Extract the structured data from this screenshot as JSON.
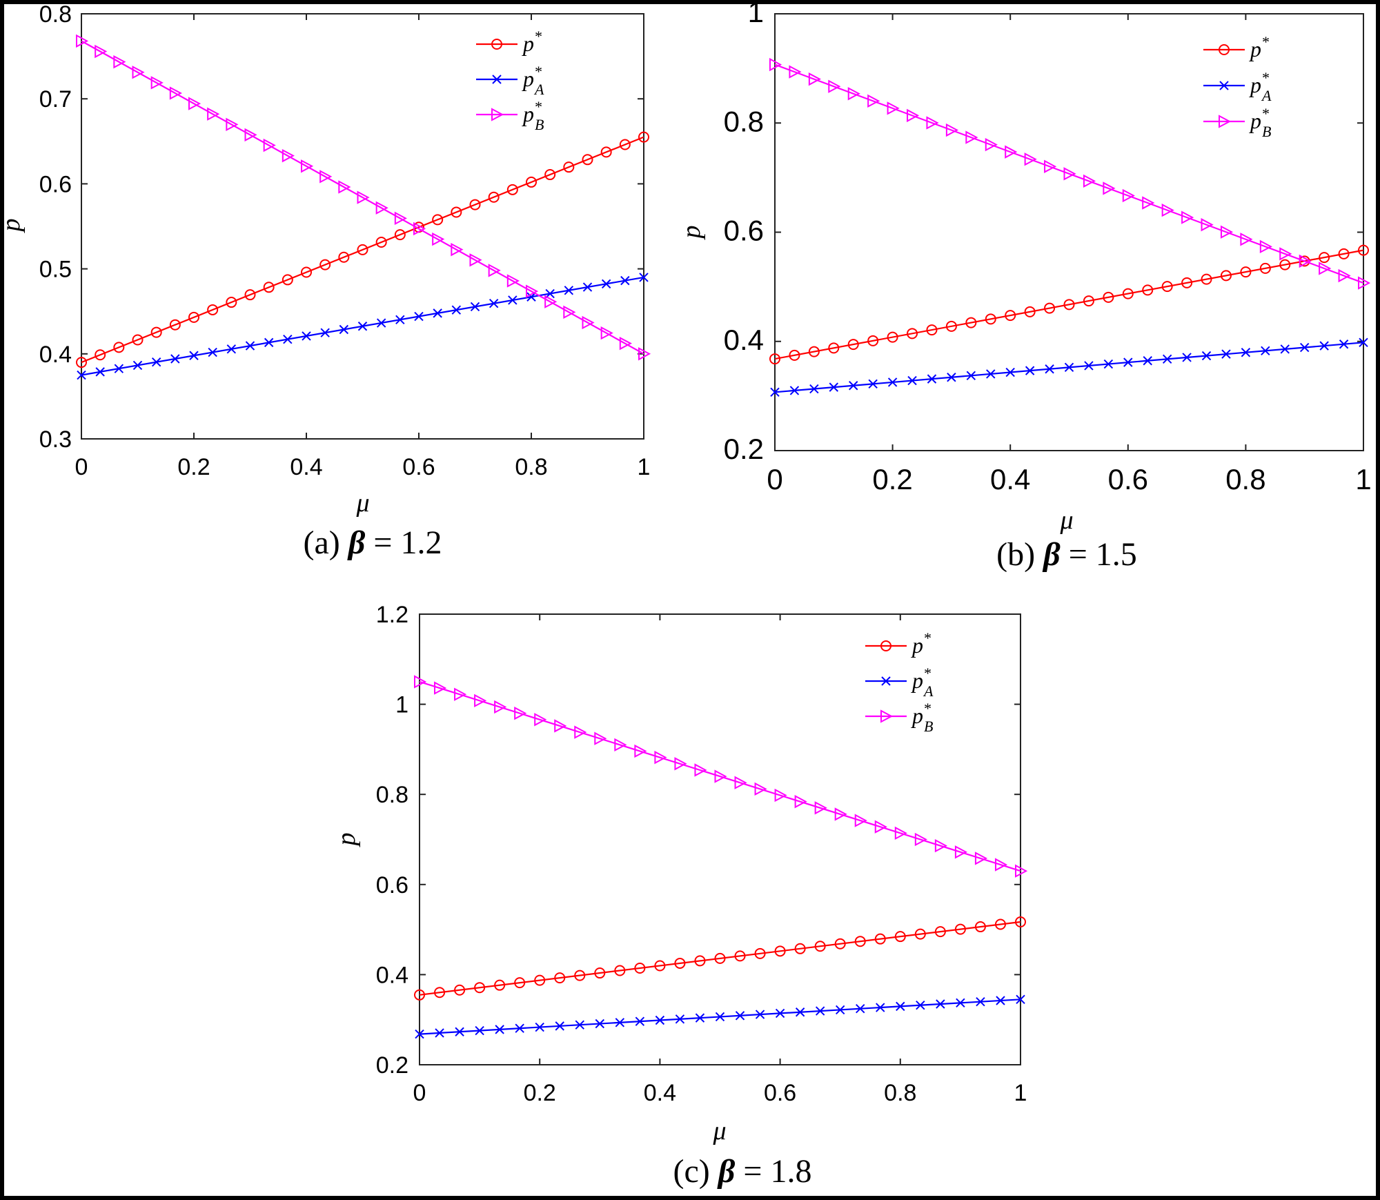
{
  "chart_data": [
    {
      "type": "line",
      "panel": "a",
      "caption": {
        "prefix": "(a) ",
        "symbol": "β",
        "rest": " = 1.2"
      },
      "xlabel": "μ",
      "ylabel": "p",
      "xlim": [
        0,
        1
      ],
      "ylim": [
        0.3,
        0.8
      ],
      "xticks": [
        "0",
        "0.2",
        "0.4",
        "0.6",
        "0.8",
        "1"
      ],
      "yticks": [
        "0.3",
        "0.4",
        "0.5",
        "0.6",
        "0.7",
        "0.8"
      ],
      "legend_position": "top-right",
      "series": [
        {
          "name": "p*",
          "marker": "circle",
          "color": "#ff0000",
          "start": 0.39,
          "end": 0.655
        },
        {
          "name": "p*A",
          "marker": "x",
          "color": "#0000ff",
          "start": 0.375,
          "end": 0.49
        },
        {
          "name": "p*B",
          "marker": "triangle-right",
          "color": "#ff00ff",
          "start": 0.768,
          "end": 0.4
        }
      ]
    },
    {
      "type": "line",
      "panel": "b",
      "caption": {
        "prefix": "(b) ",
        "symbol": "β",
        "rest": " = 1.5"
      },
      "xlabel": "μ",
      "ylabel": "p",
      "xlim": [
        0,
        1
      ],
      "ylim": [
        0.2,
        1
      ],
      "xticks": [
        "0",
        "0.2",
        "0.4",
        "0.6",
        "0.8",
        "1"
      ],
      "yticks": [
        "0.2",
        "0.4",
        "0.6",
        "0.8",
        "1"
      ],
      "legend_position": "top-right",
      "series": [
        {
          "name": "p*",
          "marker": "circle",
          "color": "#ff0000",
          "start": 0.368,
          "end": 0.567
        },
        {
          "name": "p*A",
          "marker": "x",
          "color": "#0000ff",
          "start": 0.307,
          "end": 0.398
        },
        {
          "name": "p*B",
          "marker": "triangle-right",
          "color": "#ff00ff",
          "start": 0.907,
          "end": 0.507
        }
      ]
    },
    {
      "type": "line",
      "panel": "c",
      "caption": {
        "prefix": "(c) ",
        "symbol": "β",
        "rest": " = 1.8"
      },
      "xlabel": "μ",
      "ylabel": "p",
      "xlim": [
        0,
        1
      ],
      "ylim": [
        0.2,
        1.2
      ],
      "xticks": [
        "0",
        "0.2",
        "0.4",
        "0.6",
        "0.8",
        "1"
      ],
      "yticks": [
        "0.2",
        "0.4",
        "0.6",
        "0.8",
        "1",
        "1.2"
      ],
      "legend_position": "top-right",
      "series": [
        {
          "name": "p*",
          "marker": "circle",
          "color": "#ff0000",
          "start": 0.355,
          "end": 0.517
        },
        {
          "name": "p*A",
          "marker": "x",
          "color": "#0000ff",
          "start": 0.268,
          "end": 0.345
        },
        {
          "name": "p*B",
          "marker": "triangle-right",
          "color": "#ff00ff",
          "start": 1.05,
          "end": 0.63
        }
      ]
    }
  ],
  "legend_labels": [
    {
      "base": "p",
      "sup": "*",
      "sub": ""
    },
    {
      "base": "p",
      "sup": "*",
      "sub": "A"
    },
    {
      "base": "p",
      "sup": "*",
      "sub": "B"
    }
  ]
}
